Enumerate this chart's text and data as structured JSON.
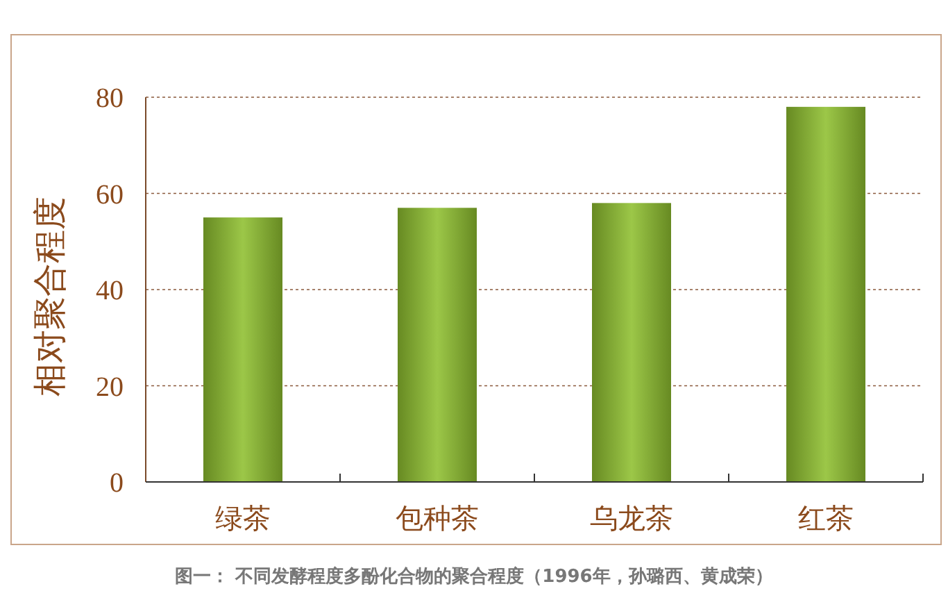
{
  "chart_data": {
    "type": "bar",
    "ylabel": "相对聚合程度",
    "categories": [
      "绿茶",
      "包种茶",
      "乌龙茶",
      "红茶"
    ],
    "values": [
      55,
      57,
      58,
      78
    ],
    "color": "#8fbf2f",
    "ylim": [
      0,
      80
    ],
    "yticks": [
      0,
      20,
      40,
      60,
      80
    ],
    "grid": "y",
    "annotations": [
      "图一： 不同发酵程度多酚化合物的聚合程度（1996年，孙璐西、黄成荣）"
    ]
  }
}
